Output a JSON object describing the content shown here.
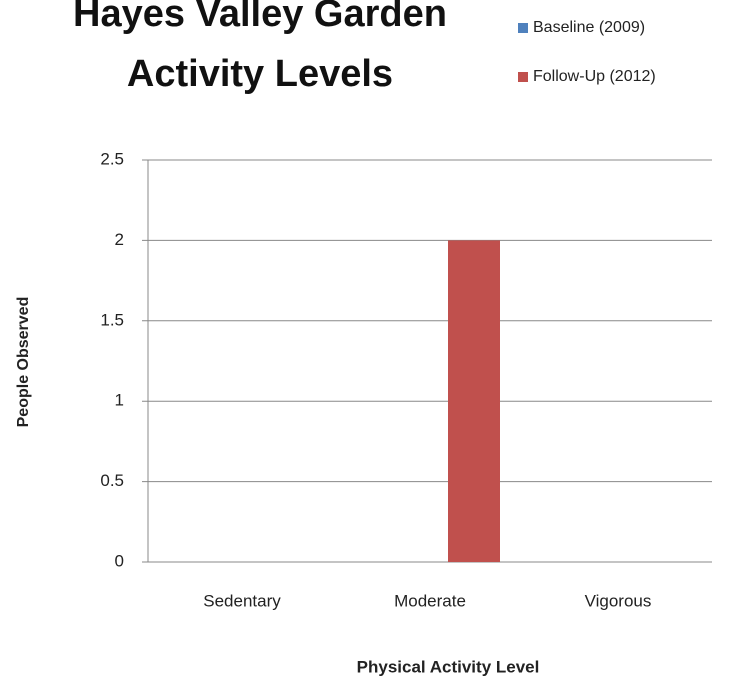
{
  "chart_data": {
    "type": "bar",
    "title": "Hayes Valley Garden Activity Levels",
    "x_label": "Physical  Activity Level",
    "y_label": "People Observed",
    "categories": [
      "Sedentary",
      "Moderate",
      "Vigorous"
    ],
    "series": [
      {
        "name": "Baseline (2009)",
        "color": "#4f81bd",
        "values": [
          0,
          0,
          0
        ]
      },
      {
        "name": "Follow-Up (2012)",
        "color": "#c0504d",
        "values": [
          0,
          2,
          0
        ]
      }
    ],
    "ylim": [
      0,
      2.5
    ],
    "yticks": [
      0,
      0.5,
      1,
      1.5,
      2,
      2.5
    ],
    "grid": true,
    "legend": "top-right"
  }
}
